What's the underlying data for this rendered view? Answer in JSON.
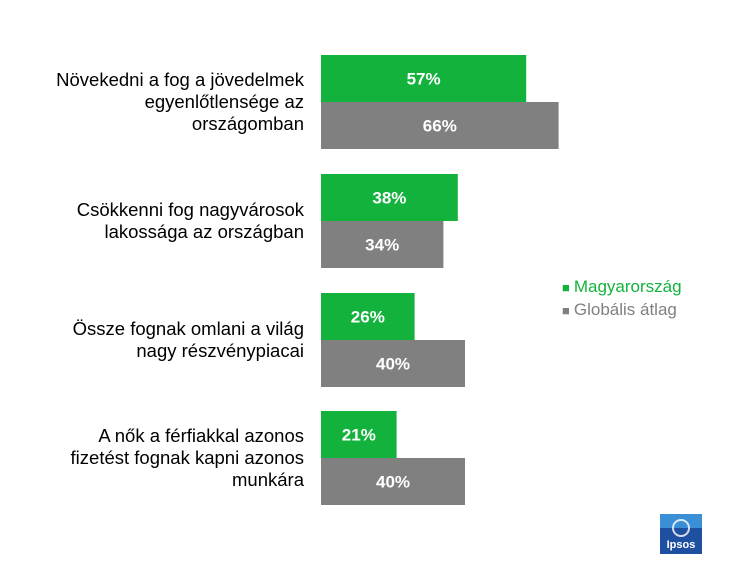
{
  "chart_data": {
    "type": "bar",
    "orientation": "horizontal",
    "categories": [
      "Növekedni a fog a jövedelmek egyenlőtlensége az országomban",
      "Csökkenni fog nagyvárosok lakossága az országban",
      "Össze fognak omlani a világ nagy részvénypiacai",
      "A nők a férfiakkal azonos fizetést fognak kapni azonos munkára"
    ],
    "category_lines": [
      [
        "Növekedni a fog a jövedelmek",
        "egyenlőtlensége az",
        "országomban"
      ],
      [
        "Csökkenni fog nagyvárosok",
        "lakossága az országban"
      ],
      [
        "Össze fognak omlani a világ",
        "nagy részvénypiacai"
      ],
      [
        "A nők a férfiakkal azonos",
        "fizetést fognak kapni azonos",
        "munkára"
      ]
    ],
    "series": [
      {
        "name": "Magyarország",
        "color": "#13b23d",
        "values": [
          57,
          38,
          26,
          21
        ]
      },
      {
        "name": "Globális átlag",
        "color": "#808080",
        "values": [
          66,
          34,
          40,
          40
        ]
      }
    ],
    "value_suffix": "%",
    "xlim": [
      0,
      100
    ],
    "grid": false,
    "legend_position": "right"
  },
  "legend_marker": "■",
  "logo": {
    "text": "Ipsos",
    "color": "#1e4fa0"
  }
}
